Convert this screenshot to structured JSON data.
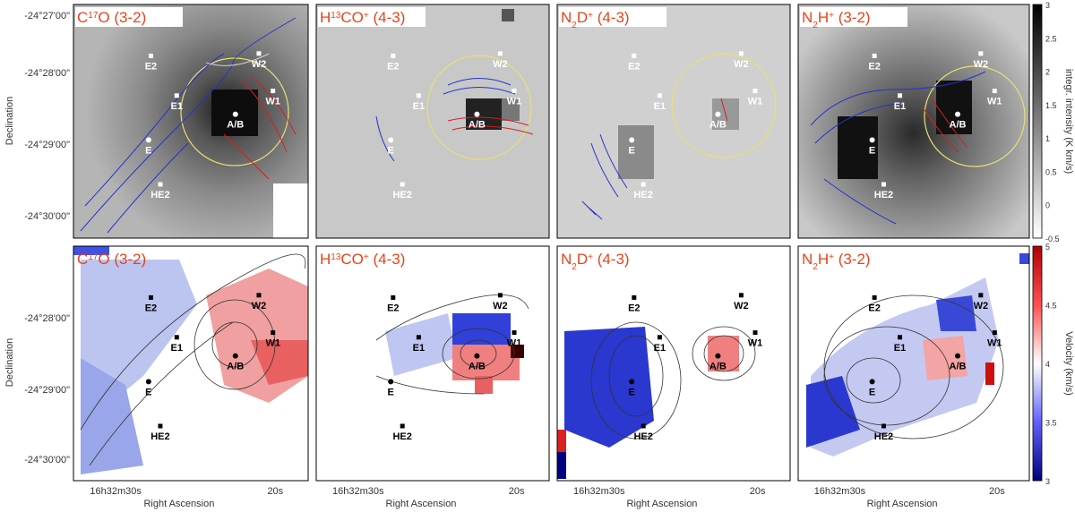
{
  "chart_data": {
    "type": "heatmap",
    "title": "",
    "xlabel": "Right Ascension",
    "ylabel": "Declination",
    "x_ticks": [
      "16h32m30s",
      "20s"
    ],
    "y_ticks": [
      "-24°27'00\"",
      "-24°28'00\"",
      "-24°29'00\"",
      "-24°30'00\""
    ],
    "panels": [
      {
        "row": "top",
        "species": "C17O (3-2)",
        "sp_main": "C",
        "sp_sup": "17",
        "sp_rest": "O (3-2)"
      },
      {
        "row": "top",
        "species": "H13CO+ (4-3)",
        "sp_main": "H",
        "sp_sup": "13",
        "sp_rest": "CO",
        "sp_sup2": "+",
        "sp_tail": " (4-3)"
      },
      {
        "row": "top",
        "species": "N2D+ (4-3)"
      },
      {
        "row": "top",
        "species": "N2H+ (3-2)"
      },
      {
        "row": "bottom",
        "species": "C17O (3-2)"
      },
      {
        "row": "bottom",
        "species": "H13CO+ (4-3)"
      },
      {
        "row": "bottom",
        "species": "N2D+ (4-3)"
      },
      {
        "row": "bottom",
        "species": "N2H+ (3-2)"
      }
    ],
    "sources": [
      "E2",
      "W2",
      "E1",
      "W1",
      "A/B",
      "E",
      "HE2"
    ],
    "colorbar_top": {
      "label": "integr. intensity (K km/s)",
      "range": [
        -0.5,
        3
      ],
      "ticks": [
        "3",
        "2.5",
        "2",
        "1.5",
        "1",
        "0.5",
        "0",
        "-0.5"
      ]
    },
    "colorbar_bottom": {
      "label": "Velocity (km/s)",
      "range": [
        3,
        5
      ],
      "ticks": [
        "5",
        "4.5",
        "4",
        "3.5",
        "3"
      ]
    }
  },
  "colors": {
    "title_red": "#e8431a",
    "blue_contour": "#2233cc",
    "red_contour": "#d42020",
    "circle": "#e8e070"
  }
}
